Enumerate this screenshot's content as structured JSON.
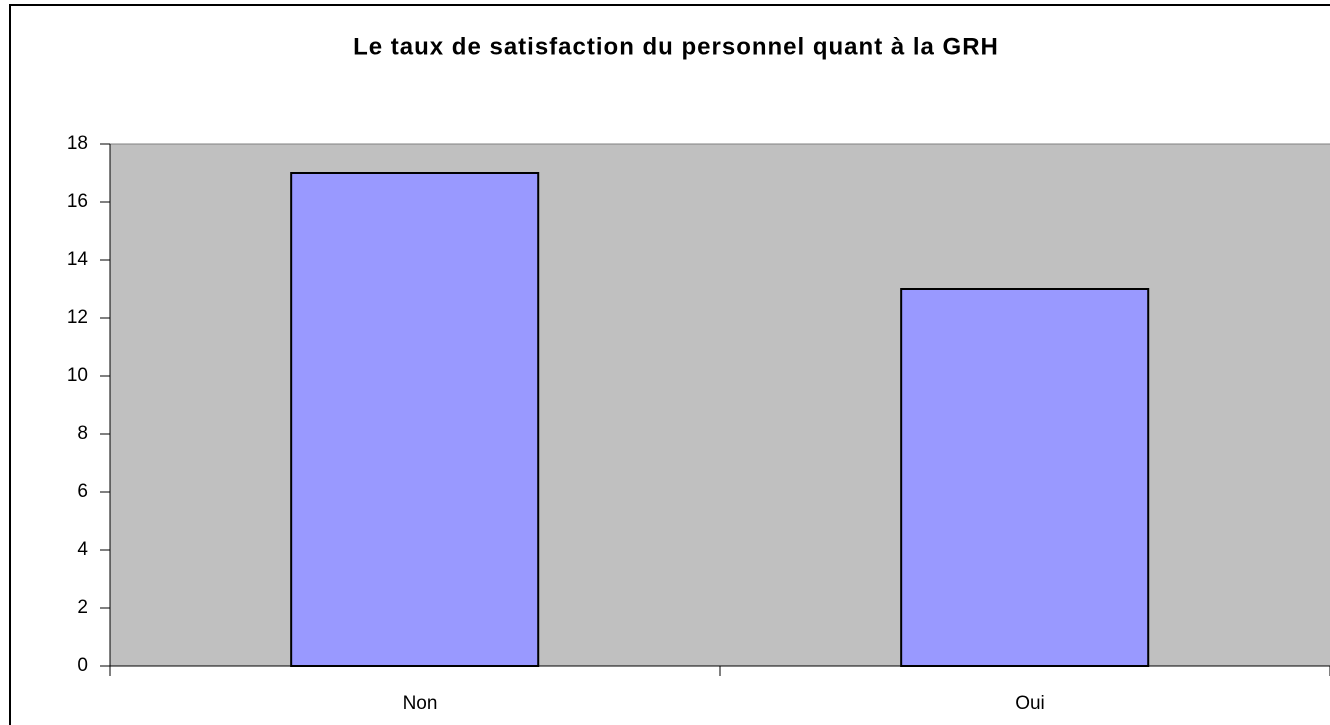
{
  "chart_data": {
    "type": "bar",
    "title": "Le taux de satisfaction du personnel quant à la GRH",
    "categories": [
      "Non",
      "Oui"
    ],
    "values": [
      17,
      13
    ],
    "color": "#9999ff",
    "ylim": [
      0,
      18
    ],
    "yticks": [
      0,
      2,
      4,
      6,
      8,
      10,
      12,
      14,
      16,
      18
    ],
    "grid": false
  }
}
